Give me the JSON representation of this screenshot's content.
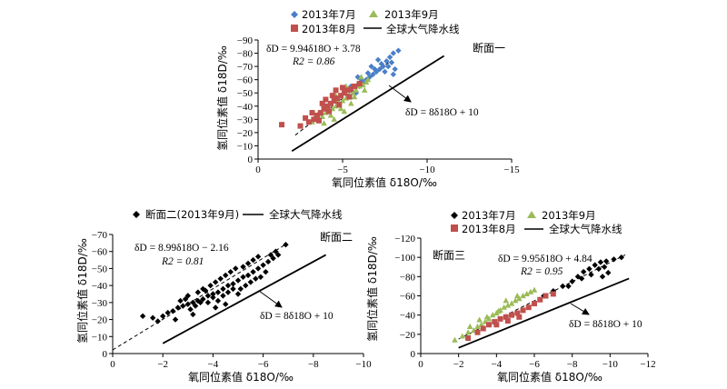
{
  "chart_data": [
    {
      "id": "p1",
      "type": "scatter",
      "section_label": "断面一",
      "xlabel": "氧同位素值 δ18O/‰",
      "ylabel": "氢同位素值 δ18D/‰",
      "xlim": [
        0,
        -15
      ],
      "ylim": [
        0,
        -90
      ],
      "xticks": [
        0,
        -5,
        -10,
        -15
      ],
      "yticks": [
        0,
        -10,
        -20,
        -30,
        -40,
        -50,
        -60,
        -70,
        -80,
        -90
      ],
      "xtick_labels": [
        "0",
        "−5",
        "−10",
        "−15"
      ],
      "ytick_labels": [
        "0",
        "−10",
        "−20",
        "−30",
        "−40",
        "−50",
        "−60",
        "−70",
        "−80",
        "−90"
      ],
      "fit_equation": "δD = 9.94δ18O + 3.78",
      "fit_r2": "R2 = 0.86",
      "gmwl_equation": "δD = 8δ18O + 10",
      "gmwl_legend": "全球大气降水线",
      "fit": {
        "slope": 9.94,
        "intercept": 3.78,
        "x_range": [
          -2.2,
          -7.8
        ]
      },
      "gmwl": {
        "slope": 8,
        "intercept": 10,
        "x_range": [
          -2.0,
          -11.0
        ]
      },
      "series": [
        {
          "name": "2013年7月",
          "marker": "diamond",
          "color": "#4a7fc9",
          "points": [
            [
              -5.8,
              -50
            ],
            [
              -6,
              -55
            ],
            [
              -6.2,
              -58
            ],
            [
              -6.4,
              -60
            ],
            [
              -6.6,
              -62
            ],
            [
              -6.8,
              -64
            ],
            [
              -7,
              -66
            ],
            [
              -7.2,
              -68
            ],
            [
              -7.4,
              -70
            ],
            [
              -7.6,
              -74
            ],
            [
              -7.8,
              -77
            ],
            [
              -8,
              -80
            ],
            [
              -8.3,
              -82
            ],
            [
              -6.5,
              -65
            ],
            [
              -6.9,
              -68
            ],
            [
              -7.3,
              -72
            ],
            [
              -7.1,
              -75
            ],
            [
              -7.7,
              -70
            ],
            [
              -8.1,
              -68
            ],
            [
              -8.0,
              -64
            ],
            [
              -5.5,
              -55
            ],
            [
              -6.1,
              -60
            ],
            [
              -6.7,
              -70
            ],
            [
              -7.5,
              -66
            ],
            [
              -5.9,
              -62
            ],
            [
              -7.9,
              -73
            ]
          ]
        },
        {
          "name": "2013年9月",
          "marker": "triangle",
          "color": "#9bbb59",
          "points": [
            [
              -3.2,
              -28
            ],
            [
              -3.5,
              -30
            ],
            [
              -3.8,
              -32
            ],
            [
              -4,
              -35
            ],
            [
              -4.2,
              -37
            ],
            [
              -4.4,
              -38
            ],
            [
              -4.6,
              -40
            ],
            [
              -4.8,
              -42
            ],
            [
              -5,
              -44
            ],
            [
              -5.2,
              -46
            ],
            [
              -5.4,
              -48
            ],
            [
              -5.6,
              -50
            ],
            [
              -5.8,
              -52
            ],
            [
              -6,
              -55
            ],
            [
              -6.2,
              -56
            ],
            [
              -6.4,
              -58
            ],
            [
              -3.6,
              -35
            ],
            [
              -4.1,
              -40
            ],
            [
              -4.7,
              -45
            ],
            [
              -5.3,
              -52
            ],
            [
              -5.9,
              -57
            ],
            [
              -6.5,
              -60
            ],
            [
              -4.3,
              -33
            ],
            [
              -4.9,
              -38
            ],
            [
              -5.5,
              -42
            ],
            [
              -3.9,
              -27
            ],
            [
              -4.5,
              -30
            ],
            [
              -5.1,
              -36
            ],
            [
              -5.7,
              -47
            ],
            [
              -6.3,
              -52
            ],
            [
              -3.4,
              -33
            ],
            [
              -4.6,
              -48
            ],
            [
              -5.2,
              -55
            ],
            [
              -6.1,
              -62
            ]
          ]
        },
        {
          "name": "2013年8月",
          "marker": "square",
          "color": "#c0504d",
          "points": [
            [
              -1.4,
              -26
            ],
            [
              -2.5,
              -25
            ],
            [
              -3,
              -28
            ],
            [
              -3.3,
              -30
            ],
            [
              -3.5,
              -33
            ],
            [
              -3.7,
              -35
            ],
            [
              -3.9,
              -38
            ],
            [
              -4.1,
              -40
            ],
            [
              -4.3,
              -42
            ],
            [
              -4.5,
              -44
            ],
            [
              -4.7,
              -46
            ],
            [
              -4.9,
              -48
            ],
            [
              -5.1,
              -50
            ],
            [
              -5.3,
              -52
            ],
            [
              -5.5,
              -53
            ],
            [
              -5.7,
              -55
            ],
            [
              -6,
              -57
            ],
            [
              -3.2,
              -35
            ],
            [
              -3.8,
              -42
            ],
            [
              -4.4,
              -48
            ],
            [
              -5,
              -54
            ],
            [
              -3.6,
              -29
            ],
            [
              -4.2,
              -36
            ],
            [
              -4.8,
              -41
            ],
            [
              -5.4,
              -47
            ],
            [
              -2.8,
              -31
            ],
            [
              -4.0,
              -45
            ],
            [
              -4.6,
              -52
            ]
          ]
        }
      ]
    },
    {
      "id": "p2",
      "type": "scatter",
      "section_label": "断面二",
      "xlabel": "氧同位素值 δ18O/‰",
      "ylabel": "氢同位素值 δ18D/‰",
      "xlim": [
        0,
        -10
      ],
      "ylim": [
        0,
        -70
      ],
      "xticks": [
        0,
        -2,
        -4,
        -6,
        -8,
        -10
      ],
      "yticks": [
        0,
        -10,
        -20,
        -30,
        -40,
        -50,
        -60,
        -70
      ],
      "xtick_labels": [
        "0",
        "−2",
        "−4",
        "−6",
        "−8",
        "−10"
      ],
      "ytick_labels": [
        "0",
        "−10",
        "−20",
        "−30",
        "−40",
        "−50",
        "−60",
        "−70"
      ],
      "fit_equation": "δD = 8.99δ18O − 2.16",
      "fit_r2": "R2 = 0.81",
      "gmwl_equation": "δD = 8δ18O + 10",
      "gmwl_legend": "全球大气降水线",
      "fit": {
        "slope": 8.99,
        "intercept": -2.16,
        "x_range": [
          0,
          -6.9
        ]
      },
      "gmwl": {
        "slope": 8,
        "intercept": 10,
        "x_range": [
          -2.0,
          -8.5
        ]
      },
      "series": [
        {
          "name": "断面二(2013年9月)",
          "marker": "diamond",
          "color": "#000000",
          "points": [
            [
              -1.2,
              -22
            ],
            [
              -1.6,
              -21
            ],
            [
              -1.8,
              -19
            ],
            [
              -2,
              -22
            ],
            [
              -2.2,
              -24
            ],
            [
              -2.4,
              -25
            ],
            [
              -2.6,
              -27
            ],
            [
              -2.8,
              -28
            ],
            [
              -3,
              -29
            ],
            [
              -3.2,
              -30
            ],
            [
              -3.4,
              -31
            ],
            [
              -3.6,
              -32
            ],
            [
              -3.8,
              -34
            ],
            [
              -4,
              -35
            ],
            [
              -4.2,
              -36
            ],
            [
              -4.4,
              -38
            ],
            [
              -4.6,
              -40
            ],
            [
              -4.8,
              -41
            ],
            [
              -5,
              -43
            ],
            [
              -5.2,
              -45
            ],
            [
              -5.4,
              -46
            ],
            [
              -5.6,
              -48
            ],
            [
              -5.8,
              -50
            ],
            [
              -6,
              -52
            ],
            [
              -6.2,
              -54
            ],
            [
              -6.4,
              -56
            ],
            [
              -6.6,
              -58
            ],
            [
              -6.9,
              -64
            ],
            [
              -3.1,
              -26
            ],
            [
              -3.3,
              -28
            ],
            [
              -3.5,
              -30
            ],
            [
              -3.7,
              -37
            ],
            [
              -3.9,
              -40
            ],
            [
              -4.1,
              -42
            ],
            [
              -4.3,
              -44
            ],
            [
              -4.5,
              -46
            ],
            [
              -4.7,
              -48
            ],
            [
              -4.9,
              -50
            ],
            [
              -5.1,
              -38
            ],
            [
              -5.3,
              -40
            ],
            [
              -5.5,
              -42
            ],
            [
              -5.7,
              -44
            ],
            [
              -5.9,
              -45
            ],
            [
              -6.1,
              -48
            ],
            [
              -2.7,
              -31
            ],
            [
              -2.9,
              -32
            ],
            [
              -3.0,
              -34
            ],
            [
              -3.4,
              -36
            ],
            [
              -3.6,
              -38
            ],
            [
              -3.8,
              -30
            ],
            [
              -4.0,
              -33
            ],
            [
              -4.2,
              -31
            ],
            [
              -4.4,
              -34
            ],
            [
              -4.6,
              -36
            ],
            [
              -4.8,
              -38
            ],
            [
              -5.0,
              -35
            ],
            [
              -5.2,
              -51
            ],
            [
              -5.4,
              -53
            ],
            [
              -5.6,
              -55
            ],
            [
              -5.8,
              -57
            ],
            [
              -6.3,
              -58
            ],
            [
              -6.5,
              -60
            ],
            [
              -2.5,
              -20
            ],
            [
              -3.2,
              -23
            ],
            [
              -4.1,
              -27
            ],
            [
              -4.5,
              -29
            ]
          ]
        }
      ]
    },
    {
      "id": "p3",
      "type": "scatter",
      "section_label": "断面三",
      "xlabel": "氧同位素值 δ18O/‰",
      "ylabel": "氢同位素值 δ18D/‰",
      "xlim": [
        0,
        -12
      ],
      "ylim": [
        0,
        -120
      ],
      "xticks": [
        0,
        -2,
        -4,
        -6,
        -8,
        -10,
        -12
      ],
      "yticks": [
        0,
        -20,
        -40,
        -60,
        -80,
        -100,
        -120
      ],
      "xtick_labels": [
        "0",
        "−2",
        "−4",
        "−6",
        "−8",
        "−10",
        "−12"
      ],
      "ytick_labels": [
        "0",
        "−20",
        "−40",
        "−60",
        "−80",
        "−100",
        "−120"
      ],
      "fit_equation": "δD = 9.95δ18O + 4.84",
      "fit_r2": "R2 = 0.95",
      "gmwl_equation": "δD = 8δ18O + 10",
      "gmwl_legend": "全球大气降水线",
      "fit": {
        "slope": 9.95,
        "intercept": 4.84,
        "x_range": [
          -1.7,
          -10.8
        ]
      },
      "gmwl": {
        "slope": 8,
        "intercept": 10,
        "x_range": [
          -2.0,
          -11.0
        ]
      },
      "series": [
        {
          "name": "2013年7月",
          "marker": "diamond",
          "color": "#000000",
          "points": [
            [
              -6.5,
              -60
            ],
            [
              -7,
              -65
            ],
            [
              -7.5,
              -70
            ],
            [
              -8,
              -75
            ],
            [
              -8.3,
              -80
            ],
            [
              -8.6,
              -85
            ],
            [
              -8.9,
              -88
            ],
            [
              -9.2,
              -92
            ],
            [
              -9.5,
              -95
            ],
            [
              -9.8,
              -96
            ],
            [
              -10.2,
              -98
            ],
            [
              -10.6,
              -100
            ],
            [
              -9,
              -82
            ],
            [
              -9.4,
              -88
            ],
            [
              -9.7,
              -90
            ],
            [
              -9.9,
              -84
            ],
            [
              -9.6,
              -80
            ],
            [
              -7.8,
              -70
            ],
            [
              -8.5,
              -78
            ]
          ]
        },
        {
          "name": "2013年9月",
          "marker": "triangle",
          "color": "#9bbb59",
          "points": [
            [
              -2.2,
              -18
            ],
            [
              -2.5,
              -22
            ],
            [
              -2.8,
              -24
            ],
            [
              -3,
              -28
            ],
            [
              -3.2,
              -30
            ],
            [
              -3.4,
              -33
            ],
            [
              -3.6,
              -36
            ],
            [
              -3.8,
              -40
            ],
            [
              -4,
              -42
            ],
            [
              -4.2,
              -45
            ],
            [
              -4.4,
              -48
            ],
            [
              -4.6,
              -50
            ],
            [
              -4.8,
              -52
            ],
            [
              -5,
              -55
            ],
            [
              -5.2,
              -57
            ],
            [
              -5.4,
              -60
            ],
            [
              -5.6,
              -62
            ],
            [
              -5.8,
              -64
            ],
            [
              -6,
              -66
            ],
            [
              -3.1,
              -35
            ],
            [
              -3.5,
              -38
            ],
            [
              -4.1,
              -44
            ],
            [
              -4.5,
              -55
            ],
            [
              -5.1,
              -60
            ],
            [
              -1.8,
              -14
            ],
            [
              -2.6,
              -28
            ]
          ]
        },
        {
          "name": "2013年8月",
          "marker": "square",
          "color": "#c0504d",
          "points": [
            [
              -2.5,
              -16
            ],
            [
              -3,
              -22
            ],
            [
              -3.3,
              -26
            ],
            [
              -3.6,
              -30
            ],
            [
              -3.9,
              -33
            ],
            [
              -4.2,
              -36
            ],
            [
              -4.5,
              -38
            ],
            [
              -4.8,
              -40
            ],
            [
              -5.1,
              -42
            ],
            [
              -5.4,
              -45
            ],
            [
              -5.7,
              -48
            ],
            [
              -6,
              -52
            ],
            [
              -6.3,
              -56
            ],
            [
              -6.6,
              -60
            ],
            [
              -7,
              -62
            ],
            [
              -4,
              -30
            ],
            [
              -4.6,
              -34
            ],
            [
              -5.2,
              -38
            ]
          ]
        }
      ]
    }
  ]
}
